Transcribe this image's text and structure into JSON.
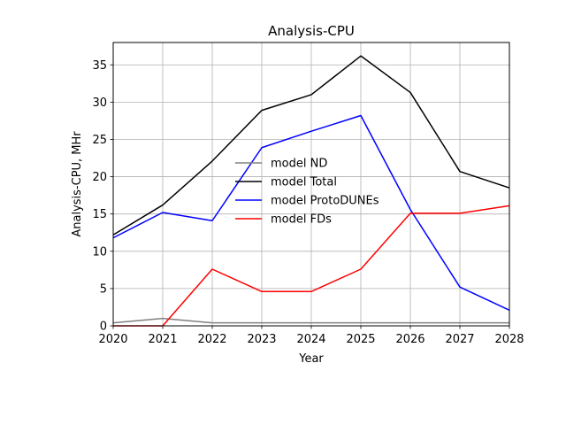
{
  "chart_data": {
    "type": "line",
    "title": "Analysis-CPU",
    "xlabel": "Year",
    "ylabel": "Analysis-CPU, MHr",
    "x": [
      2020,
      2021,
      2022,
      2023,
      2024,
      2025,
      2026,
      2027,
      2028
    ],
    "xlim": [
      2020,
      2028
    ],
    "ylim": [
      0,
      38
    ],
    "xticks": [
      "2020",
      "2021",
      "2022",
      "2023",
      "2024",
      "2025",
      "2026",
      "2027",
      "2028"
    ],
    "yticks": [
      "0",
      "5",
      "10",
      "15",
      "20",
      "25",
      "30",
      "35"
    ],
    "grid": true,
    "legend_position": "center",
    "series": [
      {
        "name": "model ND",
        "color": "#808080",
        "values": [
          0.4,
          1.0,
          0.4,
          0.4,
          0.4,
          0.4,
          0.4,
          0.4,
          0.4
        ]
      },
      {
        "name": "model Total",
        "color": "#000000",
        "values": [
          12.2,
          16.2,
          22.1,
          28.9,
          31.0,
          36.2,
          31.3,
          20.7,
          18.5
        ]
      },
      {
        "name": "model ProtoDUNEs",
        "color": "#0000ff",
        "values": [
          11.8,
          15.2,
          14.1,
          23.9,
          26.1,
          28.2,
          15.6,
          5.2,
          2.1
        ]
      },
      {
        "name": "model FDs",
        "color": "#ff0000",
        "values": [
          0.0,
          0.0,
          7.6,
          4.6,
          4.6,
          7.6,
          15.1,
          15.1,
          16.1
        ]
      }
    ]
  }
}
